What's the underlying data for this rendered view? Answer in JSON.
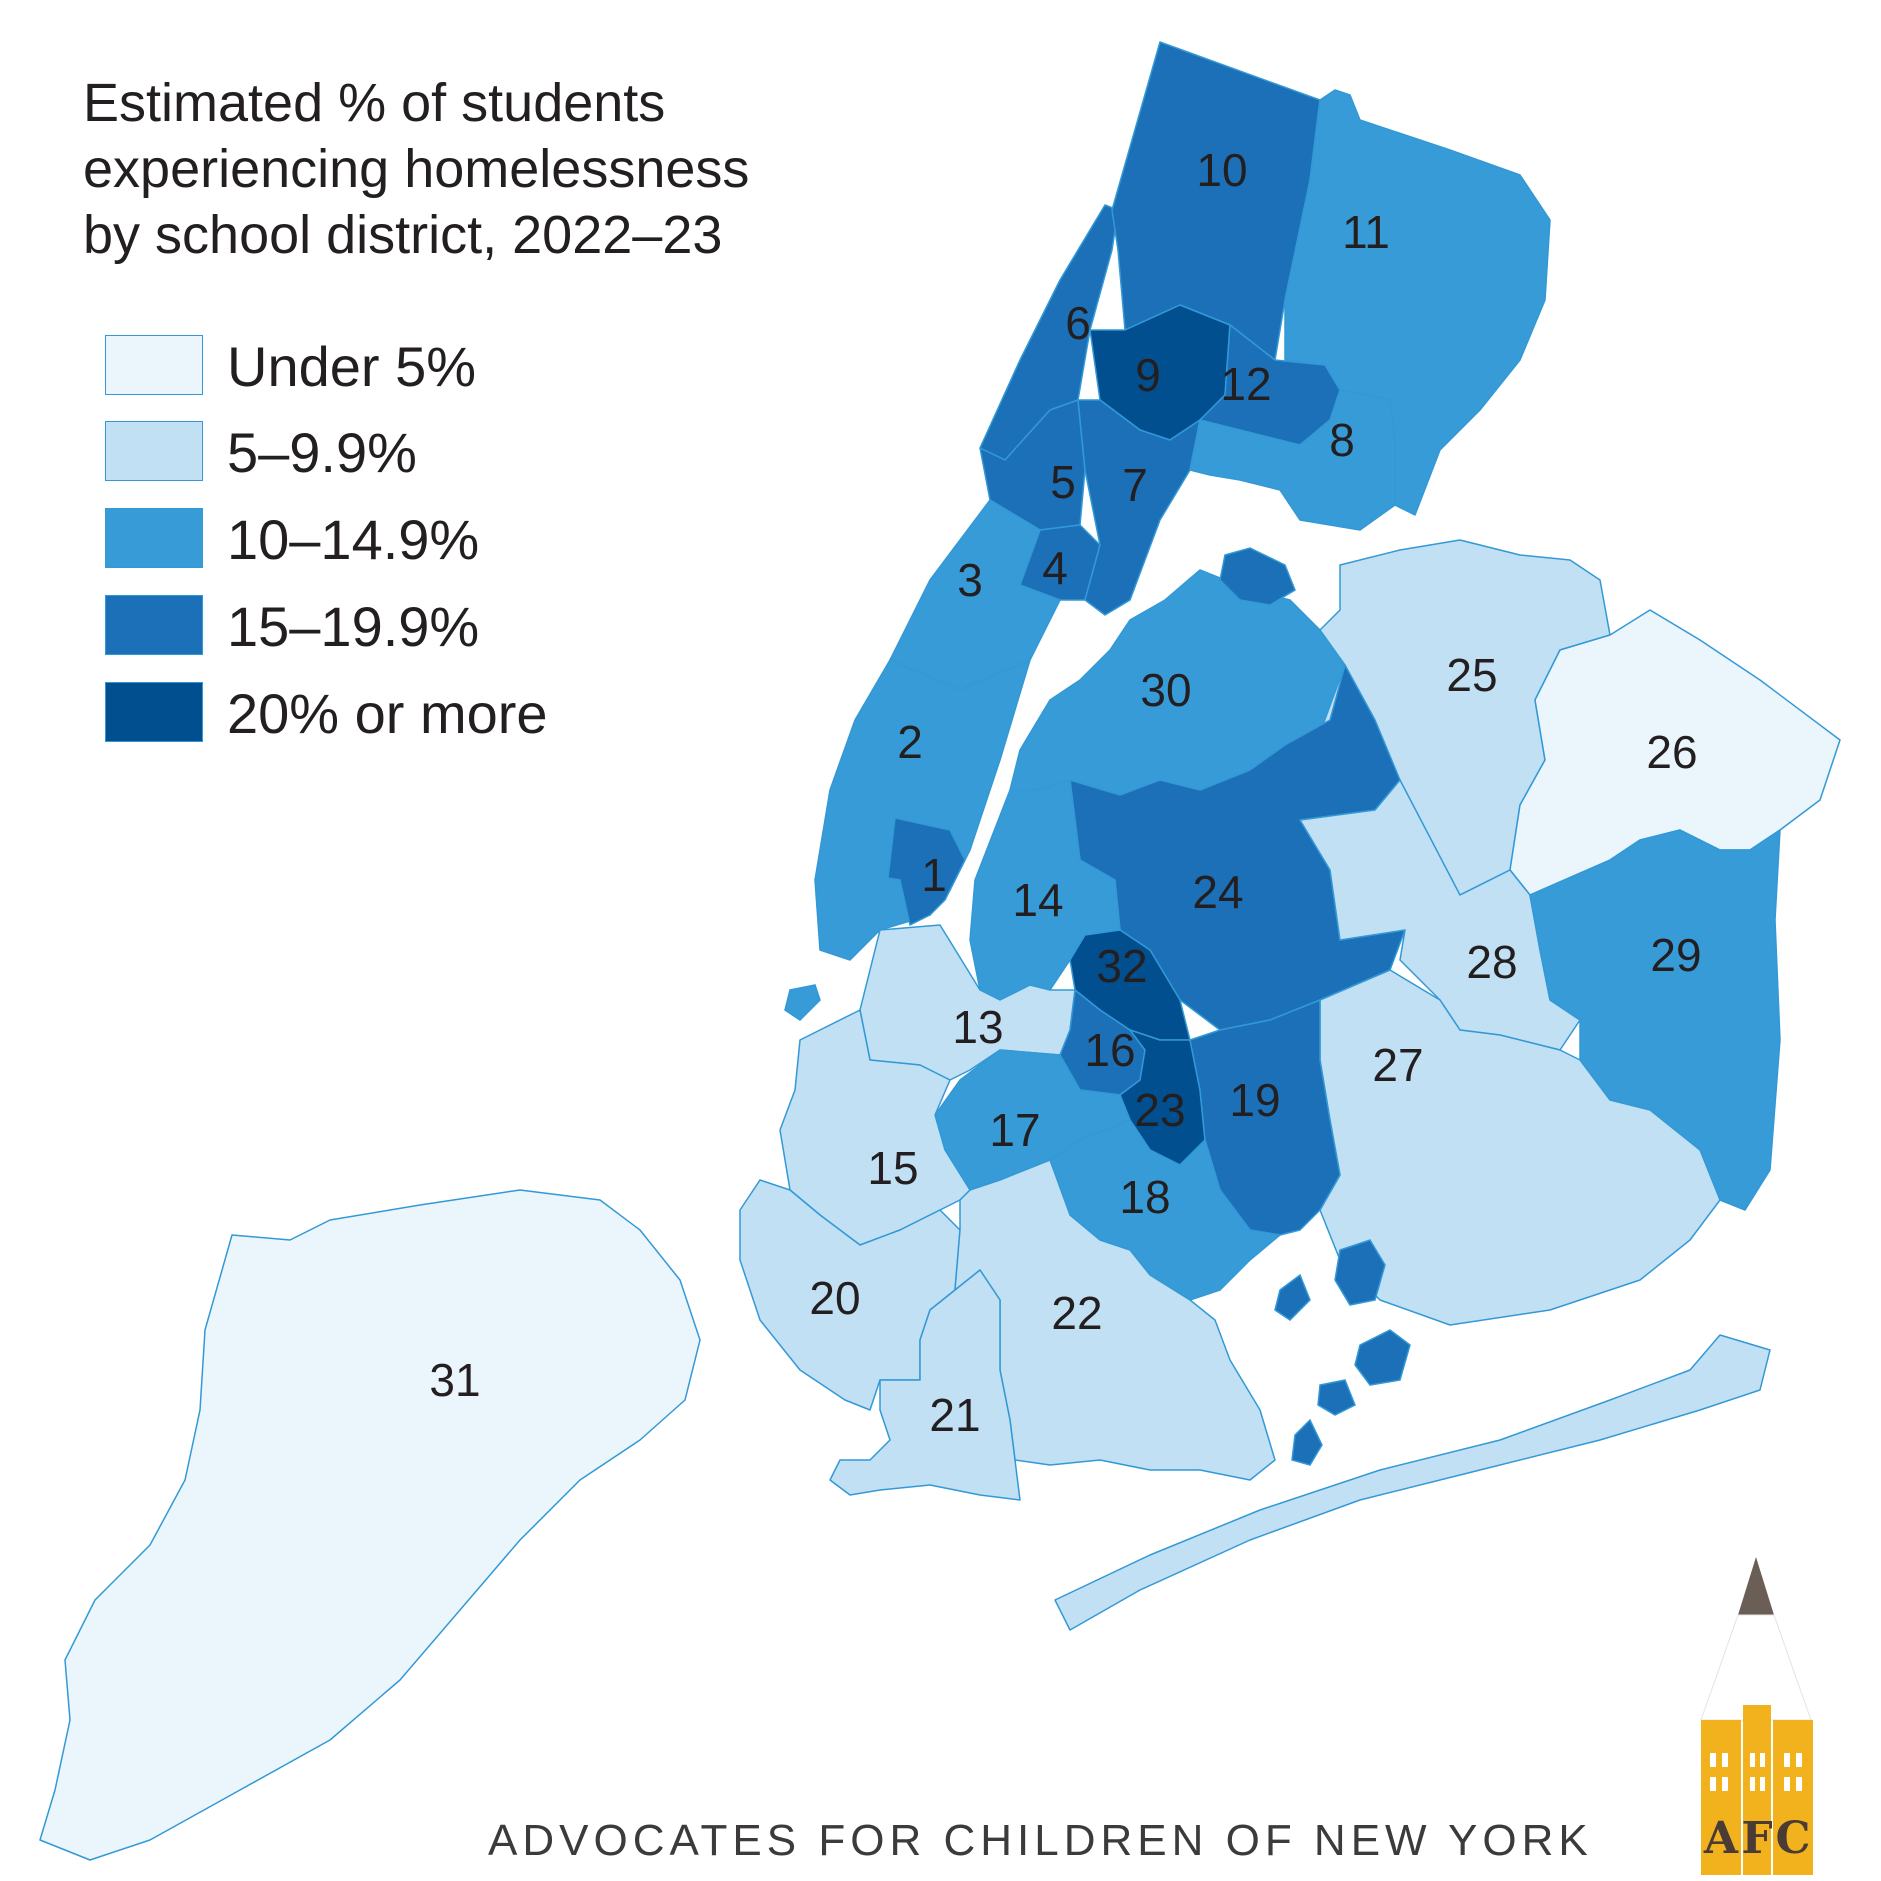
{
  "title_lines": [
    "Estimated % of students",
    "experiencing homelessness",
    "by school district, 2022–23"
  ],
  "legend": [
    {
      "label": "Under 5%",
      "color": "#eaf5fc"
    },
    {
      "label": "5–9.9%",
      "color": "#c1e0f4"
    },
    {
      "label": "10–14.9%",
      "color": "#379bd8"
    },
    {
      "label": "15–19.9%",
      "color": "#1c70b8"
    },
    {
      "label": "20% or more",
      "color": "#024f8f"
    }
  ],
  "district_border_color": "#3399d6",
  "districts": [
    {
      "id": "1",
      "category": 3
    },
    {
      "id": "2",
      "category": 2
    },
    {
      "id": "3",
      "category": 2
    },
    {
      "id": "4",
      "category": 3
    },
    {
      "id": "5",
      "category": 3
    },
    {
      "id": "6",
      "category": 3
    },
    {
      "id": "7",
      "category": 3
    },
    {
      "id": "8",
      "category": 2
    },
    {
      "id": "9",
      "category": 4
    },
    {
      "id": "10",
      "category": 3
    },
    {
      "id": "11",
      "category": 2
    },
    {
      "id": "12",
      "category": 3
    },
    {
      "id": "13",
      "category": 1
    },
    {
      "id": "14",
      "category": 2
    },
    {
      "id": "15",
      "category": 1
    },
    {
      "id": "16",
      "category": 3
    },
    {
      "id": "17",
      "category": 2
    },
    {
      "id": "18",
      "category": 2
    },
    {
      "id": "19",
      "category": 3
    },
    {
      "id": "20",
      "category": 1
    },
    {
      "id": "21",
      "category": 1
    },
    {
      "id": "22",
      "category": 1
    },
    {
      "id": "23",
      "category": 4
    },
    {
      "id": "24",
      "category": 3
    },
    {
      "id": "25",
      "category": 1
    },
    {
      "id": "26",
      "category": 0
    },
    {
      "id": "27",
      "category": 1
    },
    {
      "id": "28",
      "category": 1
    },
    {
      "id": "29",
      "category": 2
    },
    {
      "id": "30",
      "category": 2
    },
    {
      "id": "31",
      "category": 0
    },
    {
      "id": "32",
      "category": 4
    }
  ],
  "jamaica_bay_islands_category": 3,
  "footer": "ADVOCATES FOR CHILDREN OF NEW YORK",
  "logo": {
    "letters": [
      "A",
      "F",
      "C"
    ],
    "body_color": "#f2b21e",
    "dark_color": "#4a3c34",
    "tip_color": "#6b5e57"
  }
}
